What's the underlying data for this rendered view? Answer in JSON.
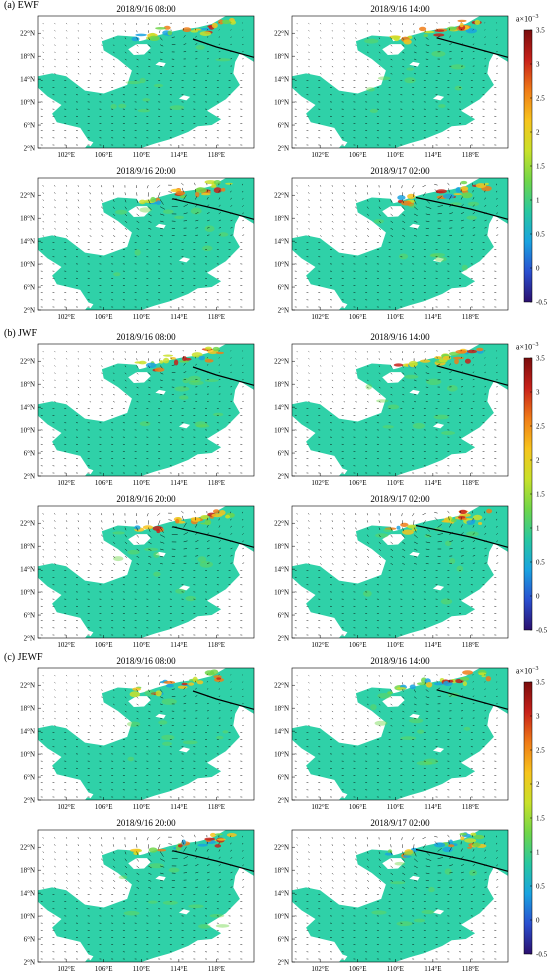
{
  "figure": {
    "sections": [
      {
        "label": "(a) EWF",
        "panels": [
          "2018/9/16 08:00",
          "2018/9/16 14:00",
          "2018/9/16 20:00",
          "2018/9/17 02:00"
        ]
      },
      {
        "label": "(b) JWF",
        "panels": [
          "2018/9/16 08:00",
          "2018/9/16 14:00",
          "2018/9/16 20:00",
          "2018/9/17 02:00"
        ]
      },
      {
        "label": "(c) JEWF",
        "panels": [
          "2018/9/16 08:00",
          "2018/9/16 14:00",
          "2018/9/16 20:00",
          "2018/9/17 02:00"
        ]
      }
    ]
  },
  "chart_data": {
    "type": "heatmap",
    "description_fields": "latitude-longitude maps with wind vectors and typhoon track",
    "x_ticks": [
      "102°E",
      "106°E",
      "110°E",
      "114°E",
      "118°E"
    ],
    "x_values": [
      102,
      106,
      110,
      114,
      118
    ],
    "y_ticks": [
      "2°N",
      "6°N",
      "10°N",
      "14°N",
      "18°N",
      "22°N"
    ],
    "y_values": [
      2,
      6,
      10,
      14,
      18,
      22
    ],
    "xlim": [
      99,
      122
    ],
    "ylim": [
      2,
      25
    ],
    "colorbar": {
      "ticks": [
        "3.5",
        "3",
        "2.5",
        "2",
        "1.5",
        "1",
        "0.5",
        "0",
        "-0.5"
      ],
      "values": [
        3.5,
        3,
        2.5,
        2,
        1.5,
        1,
        0.5,
        0,
        -0.5
      ],
      "range": [
        -0.5,
        3.5
      ],
      "unit_base": "a×10",
      "unit_exp": "−3",
      "colors": [
        "#2b0f6e",
        "#2a4fd0",
        "#1aa3e0",
        "#28c8a0",
        "#6fd64a",
        "#c9e12a",
        "#f7c41d",
        "#f07c17",
        "#c8211a",
        "#7a0d0d"
      ]
    },
    "land_color": "#ffffff",
    "sea_color": "#2fd1a8",
    "track_color": "#000000",
    "vector_color": "#000000"
  }
}
